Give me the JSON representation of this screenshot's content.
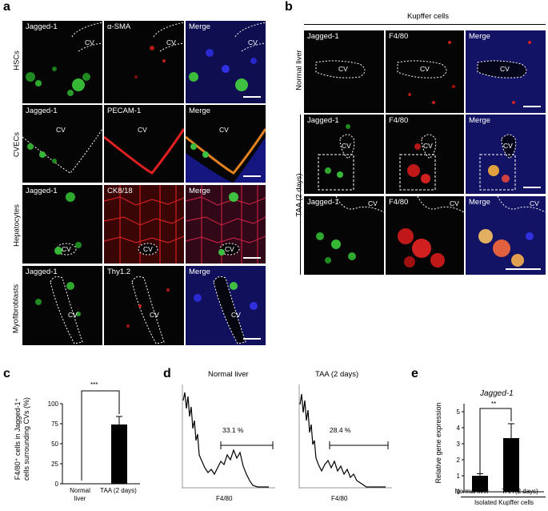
{
  "panel_a": {
    "letter": "a",
    "rows": [
      {
        "row_label": "HSCs",
        "labels": [
          "Jagged-1",
          "α-SMA",
          "Merge"
        ],
        "cv": "CV"
      },
      {
        "row_label": "CVECs",
        "labels": [
          "Jagged-1",
          "PECAM-1",
          "Merge"
        ],
        "cv": "CV"
      },
      {
        "row_label": "Hepatocytes",
        "labels": [
          "Jagged-1",
          "CK8/18",
          "Merge"
        ],
        "cv": "CV"
      },
      {
        "row_label": "Myofibroblasts",
        "labels": [
          "Jagged-1",
          "Thy1.2",
          "Merge"
        ],
        "cv": "CV"
      }
    ]
  },
  "panel_b": {
    "letter": "b",
    "header": "Kupffer cells",
    "row_label_normal": "Normal liver",
    "row_label_taa": "TAA (2 days)",
    "labels": [
      "Jagged-1",
      "F4/80",
      "Merge"
    ],
    "cv": "CV"
  },
  "panel_c": {
    "letter": "c",
    "ylabel_line1": "F4/80⁺ cells  in  Jagged-1⁺",
    "ylabel_line2": "cells surrounding CVs (%)",
    "significance": "***",
    "chart_data": {
      "type": "bar",
      "categories": [
        "Normal liver",
        "TAA (2 days)"
      ],
      "values": [
        0,
        74
      ],
      "errors": [
        0,
        10
      ],
      "ylim": [
        0,
        100
      ],
      "yticks": [
        "0",
        "25",
        "50",
        "75",
        "100"
      ],
      "xlabels": [
        [
          "Normal",
          "liver"
        ],
        [
          "TAA (2 days)"
        ]
      ]
    }
  },
  "panel_d": {
    "letter": "d",
    "histograms": [
      {
        "title": "Normal liver",
        "gate": "33.1 %",
        "xlabel": "F4/80"
      },
      {
        "title": "TAA (2 days)",
        "gate": "28.4 %",
        "xlabel": "F4/80"
      }
    ]
  },
  "panel_e": {
    "letter": "e",
    "title": "Jagged-1",
    "ylabel": "Relative gene expression",
    "significance": "**",
    "footer": "Isolated Kupffer cells",
    "chart_data": {
      "type": "bar",
      "categories": [
        "Normal liver",
        "TAA (2 days)"
      ],
      "values": [
        1.0,
        3.35
      ],
      "errors": [
        0.13,
        0.9
      ],
      "ylim": [
        0,
        5
      ],
      "yticks": [
        "0",
        "1",
        "2",
        "3",
        "4",
        "5"
      ]
    }
  }
}
